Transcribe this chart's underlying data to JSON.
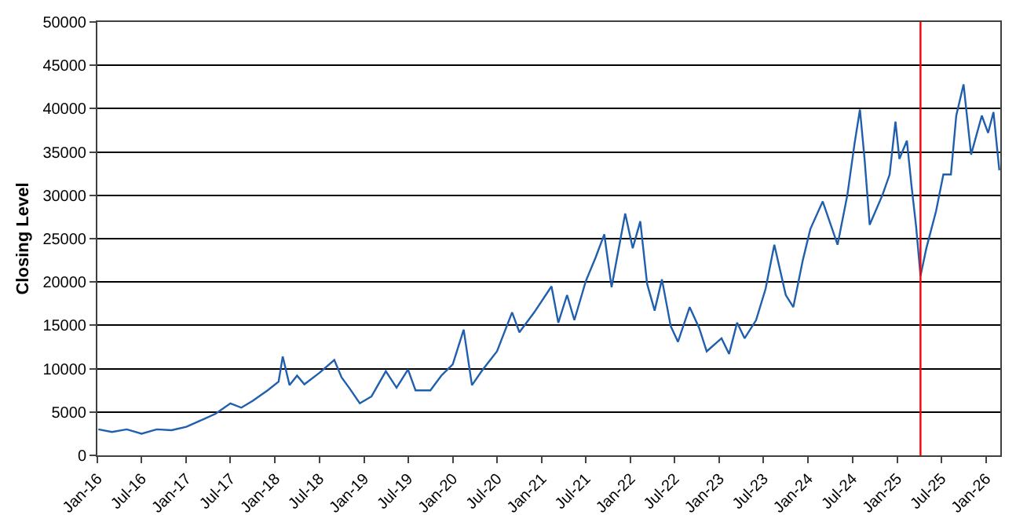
{
  "chart_data": {
    "type": "line",
    "ylabel": "Closing Level",
    "x": [
      "2016-01-05",
      "2016-03-01",
      "2016-05-01",
      "2016-07-01",
      "2016-09-01",
      "2016-11-01",
      "2017-01-01",
      "2017-03-15",
      "2017-05-01",
      "2017-07-01",
      "2017-08-15",
      "2017-10-01",
      "2017-12-01",
      "2018-01-15",
      "2018-02-01",
      "2018-03-01",
      "2018-04-01",
      "2018-05-01",
      "2018-07-01",
      "2018-09-01",
      "2018-10-01",
      "2018-11-01",
      "2018-12-15",
      "2019-02-01",
      "2019-04-01",
      "2019-05-15",
      "2019-07-01",
      "2019-08-01",
      "2019-10-01",
      "2019-11-15",
      "2020-01-01",
      "2020-02-15",
      "2020-03-20",
      "2020-05-01",
      "2020-07-01",
      "2020-09-01",
      "2020-10-01",
      "2020-12-01",
      "2021-02-10",
      "2021-03-10",
      "2021-04-15",
      "2021-05-15",
      "2021-07-01",
      "2021-08-10",
      "2021-09-15",
      "2021-10-15",
      "2021-12-10",
      "2022-01-10",
      "2022-02-10",
      "2022-03-10",
      "2022-04-10",
      "2022-05-10",
      "2022-06-15",
      "2022-07-15",
      "2022-09-01",
      "2022-10-10",
      "2022-11-10",
      "2023-01-10",
      "2023-02-10",
      "2023-03-15",
      "2023-04-15",
      "2023-06-01",
      "2023-07-10",
      "2023-08-15",
      "2023-10-01",
      "2023-11-01",
      "2023-12-10",
      "2024-01-10",
      "2024-03-01",
      "2024-05-01",
      "2024-06-10",
      "2024-07-10",
      "2024-08-01",
      "2024-08-20",
      "2024-09-10",
      "2024-11-01",
      "2024-12-01",
      "2024-12-25",
      "2025-01-10",
      "2025-02-10",
      "2025-03-01",
      "2025-03-20",
      "2025-04-07",
      "2025-05-01",
      "2025-06-10",
      "2025-07-10",
      "2025-08-10",
      "2025-09-01",
      "2025-10-01",
      "2025-11-01",
      "2025-12-15",
      "2026-01-10",
      "2026-02-01",
      "2026-02-25"
    ],
    "series": [
      {
        "color": "#1f5fad",
        "values": [
          3000,
          2700,
          3000,
          2500,
          3000,
          2900,
          3300,
          4200,
          4800,
          6000,
          5500,
          6300,
          7500,
          8500,
          11400,
          8100,
          9200,
          8200,
          9500,
          11000,
          9000,
          7800,
          6000,
          6800,
          9700,
          7800,
          9900,
          7500,
          7500,
          9200,
          10500,
          14500,
          8100,
          9800,
          12000,
          16500,
          14200,
          16500,
          19500,
          15300,
          18500,
          15600,
          20100,
          22800,
          25500,
          19400,
          27900,
          23900,
          27000,
          19800,
          16700,
          20300,
          14900,
          13100,
          17100,
          14700,
          12000,
          13500,
          11700,
          15300,
          13500,
          15600,
          19200,
          24300,
          18500,
          17100,
          22500,
          26100,
          29300,
          24300,
          30000,
          36000,
          39900,
          34200,
          26600,
          30000,
          32400,
          38500,
          34200,
          36300,
          31100,
          26400,
          20700,
          23900,
          28200,
          32400,
          32400,
          39200,
          42800,
          34700,
          39200,
          37200,
          39600,
          32900
        ]
      }
    ],
    "xlim": [
      "2016-01-01",
      "2026-03-01"
    ],
    "xticks": [
      {
        "value": "2016-01-01",
        "label": "Jan-16"
      },
      {
        "value": "2016-07-01",
        "label": "Jul-16"
      },
      {
        "value": "2017-01-01",
        "label": "Jan-17"
      },
      {
        "value": "2017-07-01",
        "label": "Jul-17"
      },
      {
        "value": "2018-01-01",
        "label": "Jan-18"
      },
      {
        "value": "2018-07-01",
        "label": "Jul-18"
      },
      {
        "value": "2019-01-01",
        "label": "Jan-19"
      },
      {
        "value": "2019-07-01",
        "label": "Jul-19"
      },
      {
        "value": "2020-01-01",
        "label": "Jan-20"
      },
      {
        "value": "2020-07-01",
        "label": "Jul-20"
      },
      {
        "value": "2021-01-01",
        "label": "Jan-21"
      },
      {
        "value": "2021-07-01",
        "label": "Jul-21"
      },
      {
        "value": "2022-01-01",
        "label": "Jan-22"
      },
      {
        "value": "2022-07-01",
        "label": "Jul-22"
      },
      {
        "value": "2023-01-01",
        "label": "Jan-23"
      },
      {
        "value": "2023-07-01",
        "label": "Jul-23"
      },
      {
        "value": "2024-01-01",
        "label": "Jan-24"
      },
      {
        "value": "2024-07-01",
        "label": "Jul-24"
      },
      {
        "value": "2025-01-01",
        "label": "Jan-25"
      },
      {
        "value": "2025-07-01",
        "label": "Jul-25"
      },
      {
        "value": "2026-01-01",
        "label": "Jan-26"
      }
    ],
    "ylim": [
      0,
      50000
    ],
    "yticks": [
      0,
      5000,
      10000,
      15000,
      20000,
      25000,
      30000,
      35000,
      40000,
      45000,
      50000
    ],
    "grid": "y",
    "marker": "none",
    "line_style": "solid",
    "ref_lines": [
      {
        "axis": "x",
        "value": "2025-04-07",
        "color": "#ff0000",
        "line_style": "solid"
      }
    ]
  }
}
